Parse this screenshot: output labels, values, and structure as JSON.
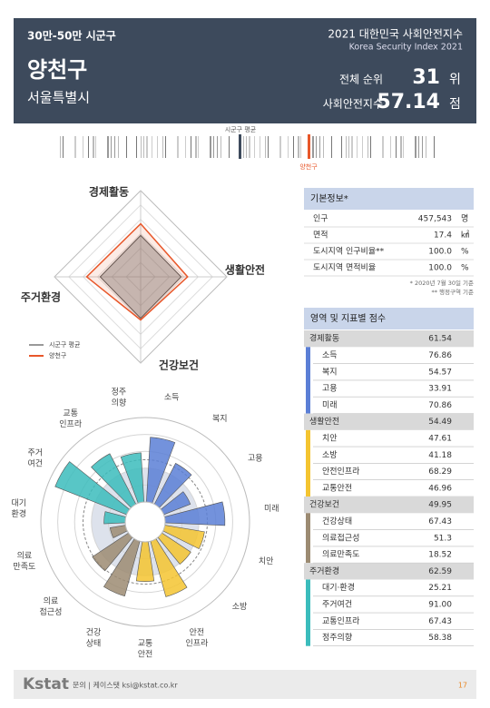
{
  "header": {
    "category": "30만-50만 시군구",
    "report_title": "2021 대한민국 사회안전지수",
    "report_subtitle": "Korea Security Index 2021",
    "name": "양천구",
    "region": "서울특별시",
    "rank_label": "전체 순위",
    "rank": 31,
    "rank_unit": "위",
    "index_label": "사회안전지수",
    "index": 57.14,
    "index_unit": "점"
  },
  "strip": {
    "average_label": "시군구 평균",
    "region_label": "양천구"
  },
  "radar": {
    "axes": [
      "경제활동",
      "생활안전",
      "건강보건",
      "주거환경"
    ],
    "rlim": [
      0,
      100
    ],
    "series": [
      {
        "name": "시군구 평균",
        "color": "#555555",
        "values": [
          48,
          47,
          48,
          47
        ]
      },
      {
        "name": "양천구",
        "color": "#e8572a",
        "values": [
          61.54,
          54.49,
          49.95,
          62.59
        ]
      }
    ]
  },
  "polar": {
    "rlim": [
      0,
      100
    ],
    "labels": [
      [
        "소득"
      ],
      [
        "복지"
      ],
      [
        "고용"
      ],
      [
        "미래"
      ],
      [
        "치안"
      ],
      [
        "소방"
      ],
      [
        "안전",
        "인프라"
      ],
      [
        "교통",
        "안전"
      ],
      [
        "건강",
        "상태"
      ],
      [
        "의료",
        "접근성"
      ],
      [
        "의료",
        "만족도"
      ],
      [
        "대기",
        "환경"
      ],
      [
        "주거",
        "여건"
      ],
      [
        "교통",
        "인프라"
      ],
      [
        "정주",
        "의향"
      ]
    ]
  },
  "basic_info": {
    "title": "기본정보*",
    "rows": [
      {
        "label": "인구",
        "value": {
          "value": 457543,
          "label": "457,543"
        },
        "unit": "명"
      },
      {
        "label": "면적",
        "value": 17.4,
        "unit": "㎢"
      },
      {
        "label": "도시지역 인구비율**",
        "value": {
          "value": 100,
          "label": "100.0"
        },
        "unit": "%"
      },
      {
        "label": "도시지역 면적비율",
        "value": {
          "value": 100,
          "label": "100.0"
        },
        "unit": "%"
      }
    ],
    "notes": [
      "* 2020년 7월 30일 기준",
      "** 행정구역 기준"
    ]
  },
  "scores": {
    "title": "영역 및 지표별 점수",
    "domains": [
      {
        "name": "경제활동",
        "score": 61.54,
        "color": "#5b7fd6",
        "indicators": [
          {
            "name": "소득",
            "score": 76.86
          },
          {
            "name": "복지",
            "score": 54.57
          },
          {
            "name": "고용",
            "score": 33.91
          },
          {
            "name": "미래",
            "score": 70.86
          }
        ]
      },
      {
        "name": "생활안전",
        "score": 54.49,
        "color": "#f4c430",
        "indicators": [
          {
            "name": "치안",
            "score": 47.61
          },
          {
            "name": "소방",
            "score": 41.18
          },
          {
            "name": "안전인프라",
            "score": 68.29
          },
          {
            "name": "교통안전",
            "score": 46.96
          }
        ]
      },
      {
        "name": "건강보건",
        "score": 49.95,
        "color": "#9c8b72",
        "indicators": [
          {
            "name": "건강상태",
            "score": 67.43
          },
          {
            "name": "의료접근성",
            "score": 51.3
          },
          {
            "name": "의료만족도",
            "score": 18.52
          }
        ]
      },
      {
        "name": "주거환경",
        "score": 62.59,
        "color": "#3bbcbc",
        "indicators": [
          {
            "name": "대기·환경",
            "score": 25.21
          },
          {
            "name": "주거여건",
            "score": {
              "value": 91,
              "label": "91.00"
            }
          },
          {
            "name": "교통인프라",
            "score": 67.43
          },
          {
            "name": "정주의향",
            "score": 58.38
          }
        ]
      }
    ]
  },
  "footer": {
    "logo": "Kstat",
    "contact": "문의 | 케이스탯 ksi@kstat.co.kr",
    "page": 17
  }
}
